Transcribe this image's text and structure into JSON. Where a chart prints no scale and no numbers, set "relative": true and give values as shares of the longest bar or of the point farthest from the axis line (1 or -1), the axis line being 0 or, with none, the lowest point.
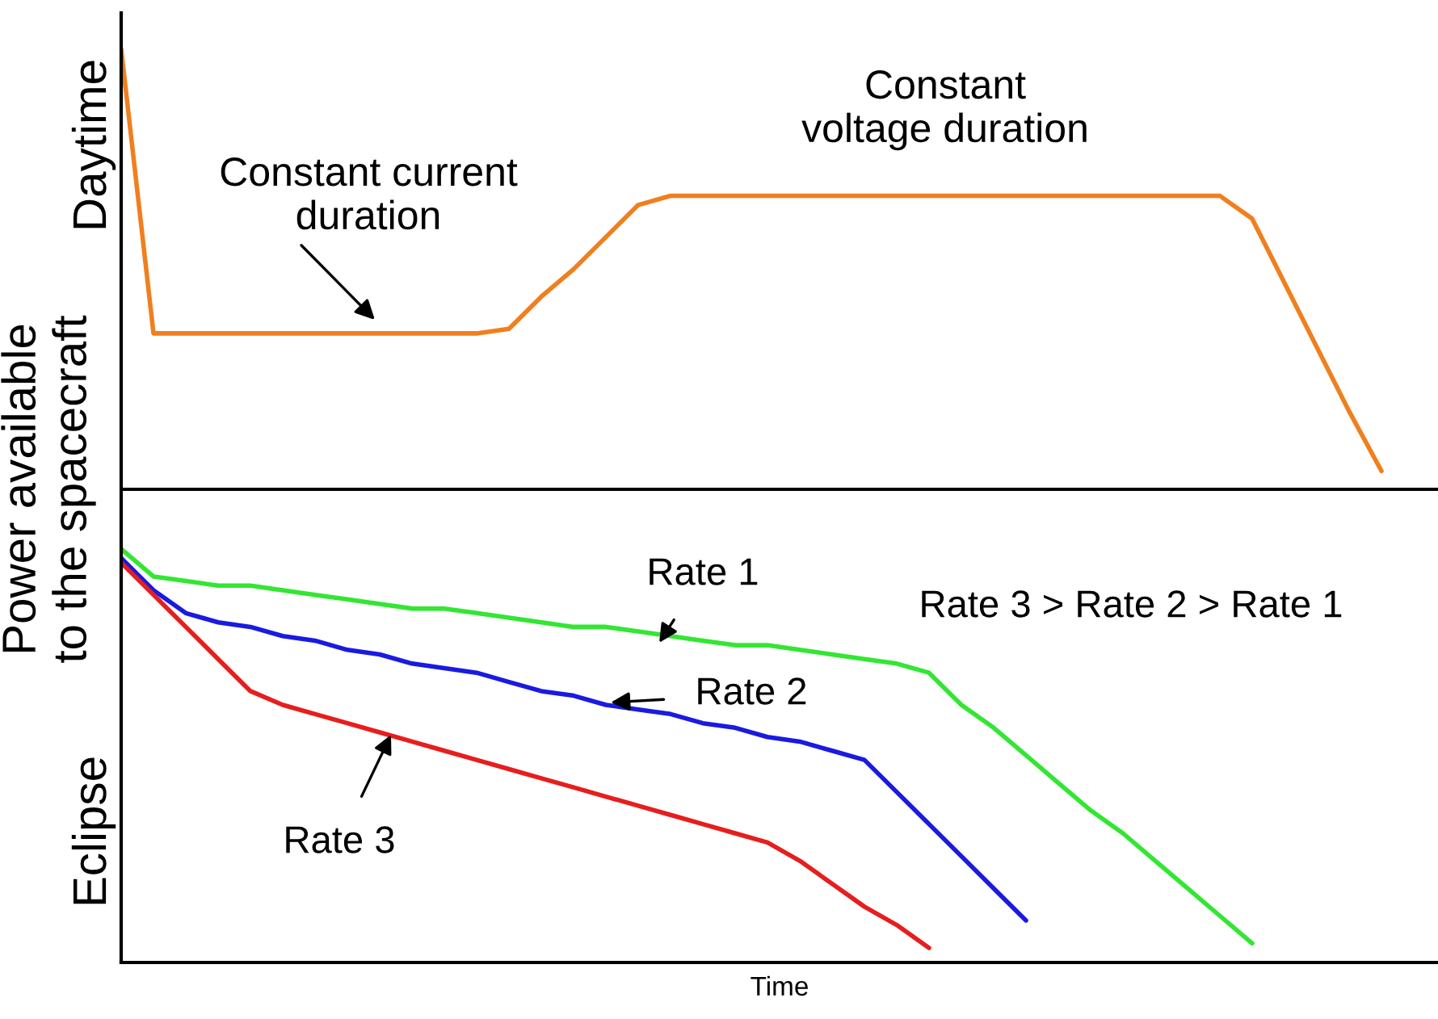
{
  "chart_data": {
    "type": "line",
    "relative": true,
    "xlabel": "Time",
    "ylabel": "Power available\nto the spacecraft",
    "legend": false,
    "categories": [
      null,
      null,
      null,
      null,
      null,
      null,
      null,
      null,
      null,
      null,
      null,
      null,
      null,
      null,
      null,
      null,
      null,
      null,
      null,
      null,
      null,
      null,
      null,
      null,
      null,
      null,
      null,
      null,
      null,
      null,
      null,
      null,
      null,
      null,
      null,
      null,
      null,
      null,
      null,
      null,
      null
    ],
    "series": [
      {
        "color": "#f07f1e",
        "values": [
          0.96,
          0.34,
          0.34,
          0.34,
          0.34,
          0.34,
          0.34,
          0.34,
          0.34,
          0.34,
          0.34,
          0.34,
          0.35,
          0.42,
          0.48,
          0.55,
          0.62,
          0.64,
          0.64,
          0.64,
          0.64,
          0.64,
          0.64,
          0.64,
          0.64,
          0.64,
          0.64,
          0.64,
          0.64,
          0.64,
          0.64,
          0.64,
          0.64,
          0.64,
          0.64,
          0.59,
          0.45,
          0.31,
          0.17,
          0.04,
          null
        ]
      },
      {
        "name": "Rate 1",
        "color": "#33e633",
        "values": [
          -0.13,
          -0.19,
          -0.2,
          -0.21,
          -0.21,
          -0.22,
          -0.23,
          -0.24,
          -0.25,
          -0.26,
          -0.26,
          -0.27,
          -0.28,
          -0.29,
          -0.3,
          -0.3,
          -0.31,
          -0.32,
          -0.33,
          -0.34,
          -0.34,
          -0.35,
          -0.36,
          -0.37,
          -0.38,
          -0.4,
          -0.47,
          -0.52,
          -0.58,
          -0.64,
          -0.7,
          -0.75,
          -0.81,
          -0.87,
          -0.93,
          -0.99,
          null,
          null,
          null,
          null,
          null
        ]
      },
      {
        "name": "Rate 2",
        "color": "#1a1ae0",
        "values": [
          -0.15,
          -0.22,
          -0.27,
          -0.29,
          -0.3,
          -0.32,
          -0.33,
          -0.35,
          -0.36,
          -0.38,
          -0.39,
          -0.4,
          -0.42,
          -0.44,
          -0.45,
          -0.47,
          -0.48,
          -0.49,
          -0.51,
          -0.52,
          -0.54,
          -0.55,
          -0.57,
          -0.59,
          -0.66,
          -0.73,
          -0.8,
          -0.87,
          -0.94,
          null,
          null,
          null,
          null,
          null,
          null,
          null,
          null,
          null,
          null,
          null,
          null
        ]
      },
      {
        "name": "Rate 3",
        "color": "#e61e1e",
        "values": [
          -0.16,
          -0.23,
          -0.3,
          -0.37,
          -0.44,
          -0.47,
          -0.49,
          -0.51,
          -0.53,
          -0.55,
          -0.57,
          -0.59,
          -0.61,
          -0.63,
          -0.65,
          -0.67,
          -0.69,
          -0.71,
          -0.73,
          -0.75,
          -0.77,
          -0.81,
          -0.86,
          -0.91,
          -0.95,
          -1,
          null,
          null,
          null,
          null,
          null,
          null,
          null,
          null,
          null,
          null,
          null,
          null,
          null,
          null,
          null
        ]
      }
    ],
    "annotations": [
      "Constant current\nduration",
      "Constant\nvoltage duration",
      "Rate 3 > Rate 2 > Rate 1",
      "Daytime",
      "Eclipse"
    ]
  }
}
